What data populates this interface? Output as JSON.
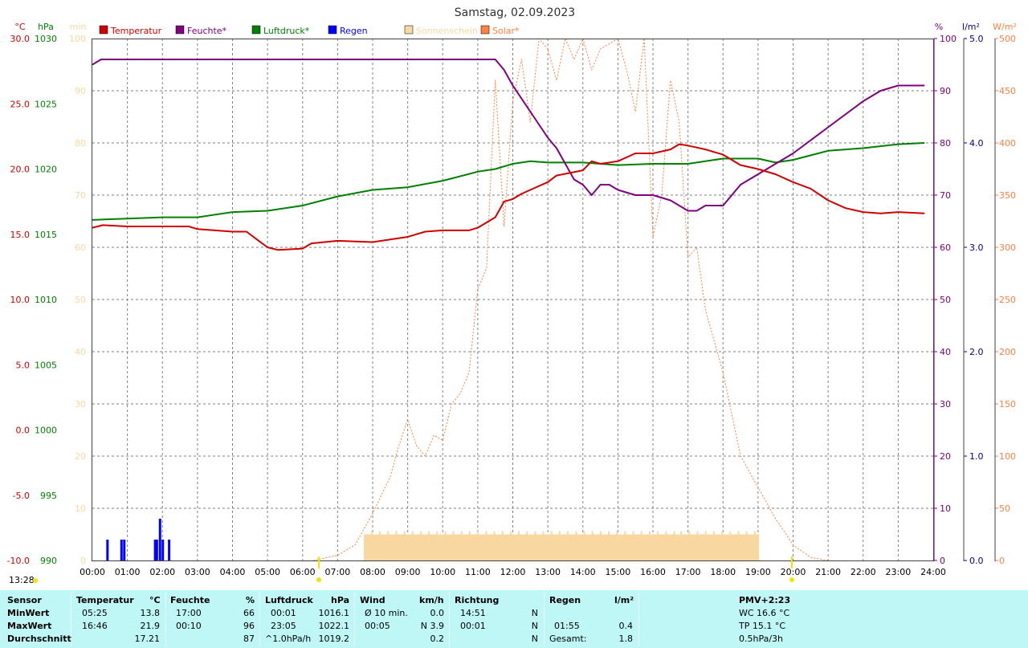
{
  "title": "Samstag, 02.09.2023",
  "current_time": "13:28",
  "colors": {
    "temperature": "#d00000",
    "humidity": "#800080",
    "pressure": "#008000",
    "rain": "#0000ff",
    "sunshine": "#f8d8a0",
    "solar": "#ff8040",
    "grid": "#808080",
    "table_bg": "#bff7f7"
  },
  "axes": {
    "temp_unit": "°C",
    "pressure_unit": "hPa",
    "sunshine_unit": "min",
    "humidity_unit": "%",
    "rain_unit": "l/m²",
    "solar_unit": "W/m²",
    "temp_ticks": [
      "30.0",
      "25.0",
      "20.0",
      "15.0",
      "10.0",
      "5.0",
      "0.0",
      "-5.0",
      "-10.0"
    ],
    "pressure_ticks": [
      "1030",
      "1025",
      "1020",
      "1015",
      "1010",
      "1005",
      "1000",
      "995",
      "990"
    ],
    "sunshine_ticks": [
      "100",
      "90",
      "80",
      "70",
      "60",
      "50",
      "40",
      "30",
      "20",
      "10",
      "0"
    ],
    "humidity_ticks": [
      "100",
      "90",
      "80",
      "70",
      "60",
      "50",
      "40",
      "30",
      "20",
      "10",
      "0"
    ],
    "rain_ticks": [
      "5.0",
      "4.0",
      "3.0",
      "2.0",
      "1.0",
      "0.0"
    ],
    "solar_ticks": [
      "500",
      "450",
      "400",
      "350",
      "300",
      "250",
      "200",
      "150",
      "100",
      "50",
      "0"
    ],
    "x_ticks": [
      "00:00",
      "01:00",
      "02:00",
      "03:00",
      "04:00",
      "05:00",
      "06:00",
      "07:00",
      "08:00",
      "09:00",
      "10:00",
      "11:00",
      "12:00",
      "13:00",
      "14:00",
      "15:00",
      "16:00",
      "17:00",
      "18:00",
      "19:00",
      "20:00",
      "21:00",
      "22:00",
      "23:00",
      "24:00"
    ]
  },
  "legend": [
    {
      "label": "Temperatur",
      "color": "#d00000"
    },
    {
      "label": "Feuchte*",
      "color": "#800080"
    },
    {
      "label": "Luftdruck*",
      "color": "#008000"
    },
    {
      "label": "Regen",
      "color": "#0000ff"
    },
    {
      "label": "Sonnenschein",
      "color": "#f8d8a0"
    },
    {
      "label": "Solar*",
      "color": "#ff8040"
    }
  ],
  "chart_data": {
    "type": "line",
    "title": "Samstag, 02.09.2023",
    "x_range_hours": [
      0,
      24
    ],
    "grid": true,
    "legend_placement": "top",
    "series": [
      {
        "name": "Temperatur",
        "axis": "left",
        "unit": "°C",
        "ylim": [
          -10,
          30
        ],
        "points": [
          [
            0,
            15.5
          ],
          [
            0.3,
            15.7
          ],
          [
            1,
            15.6
          ],
          [
            2,
            15.6
          ],
          [
            2.75,
            15.6
          ],
          [
            3,
            15.4
          ],
          [
            4,
            15.2
          ],
          [
            4.4,
            15.2
          ],
          [
            4.75,
            14.5
          ],
          [
            5,
            14.0
          ],
          [
            5.3,
            13.8
          ],
          [
            6,
            13.9
          ],
          [
            6.25,
            14.3
          ],
          [
            7,
            14.5
          ],
          [
            8,
            14.4
          ],
          [
            8.5,
            14.6
          ],
          [
            9,
            14.8
          ],
          [
            9.5,
            15.2
          ],
          [
            10,
            15.3
          ],
          [
            10.75,
            15.3
          ],
          [
            11,
            15.5
          ],
          [
            11.5,
            16.3
          ],
          [
            11.75,
            17.5
          ],
          [
            12,
            17.7
          ],
          [
            12.25,
            18.1
          ],
          [
            12.5,
            18.4
          ],
          [
            13,
            19.0
          ],
          [
            13.25,
            19.5
          ],
          [
            14,
            19.9
          ],
          [
            14.25,
            20.6
          ],
          [
            14.5,
            20.4
          ],
          [
            15,
            20.6
          ],
          [
            15.5,
            21.2
          ],
          [
            16,
            21.2
          ],
          [
            16.5,
            21.5
          ],
          [
            16.75,
            21.9
          ],
          [
            17,
            21.8
          ],
          [
            17.5,
            21.5
          ],
          [
            18,
            21.1
          ],
          [
            18.5,
            20.3
          ],
          [
            19,
            20.0
          ],
          [
            19.5,
            19.6
          ],
          [
            20,
            19.0
          ],
          [
            20.5,
            18.5
          ],
          [
            21,
            17.6
          ],
          [
            21.5,
            17.0
          ],
          [
            22,
            16.7
          ],
          [
            22.5,
            16.6
          ],
          [
            23,
            16.7
          ],
          [
            23.75,
            16.6
          ]
        ]
      },
      {
        "name": "Feuchte*",
        "axis": "right",
        "unit": "%",
        "ylim": [
          0,
          100
        ],
        "points": [
          [
            0,
            95
          ],
          [
            0.25,
            96
          ],
          [
            1,
            96
          ],
          [
            2,
            96
          ],
          [
            2.75,
            96
          ],
          [
            3,
            96
          ],
          [
            4,
            96
          ],
          [
            5,
            96
          ],
          [
            6,
            96
          ],
          [
            7,
            96
          ],
          [
            8,
            96
          ],
          [
            9,
            96
          ],
          [
            10,
            96
          ],
          [
            11,
            96
          ],
          [
            11.5,
            96
          ],
          [
            11.75,
            94
          ],
          [
            12,
            91
          ],
          [
            12.5,
            86
          ],
          [
            13,
            81
          ],
          [
            13.25,
            79
          ],
          [
            13.5,
            76
          ],
          [
            13.75,
            73
          ],
          [
            14,
            72
          ],
          [
            14.25,
            70
          ],
          [
            14.5,
            72
          ],
          [
            14.75,
            72
          ],
          [
            15,
            71
          ],
          [
            15.5,
            70
          ],
          [
            16,
            70
          ],
          [
            16.5,
            69
          ],
          [
            16.75,
            68
          ],
          [
            17,
            67
          ],
          [
            17.25,
            67
          ],
          [
            17.5,
            68
          ],
          [
            18,
            68
          ],
          [
            18.25,
            70
          ],
          [
            18.5,
            72
          ],
          [
            19,
            74
          ],
          [
            19.5,
            76
          ],
          [
            20,
            78
          ],
          [
            21,
            83
          ],
          [
            22,
            88
          ],
          [
            22.5,
            90
          ],
          [
            23,
            91
          ],
          [
            23.75,
            91
          ]
        ]
      },
      {
        "name": "Luftdruck*",
        "axis": "left",
        "unit": "hPa",
        "ylim": [
          990,
          1030
        ],
        "points": [
          [
            0,
            1016.1
          ],
          [
            1,
            1016.2
          ],
          [
            2,
            1016.3
          ],
          [
            3,
            1016.3
          ],
          [
            4,
            1016.7
          ],
          [
            5,
            1016.8
          ],
          [
            6,
            1017.2
          ],
          [
            7,
            1017.9
          ],
          [
            8,
            1018.4
          ],
          [
            9,
            1018.6
          ],
          [
            10,
            1019.1
          ],
          [
            11,
            1019.8
          ],
          [
            11.5,
            1020.0
          ],
          [
            12,
            1020.4
          ],
          [
            12.5,
            1020.6
          ],
          [
            13,
            1020.5
          ],
          [
            14,
            1020.5
          ],
          [
            15,
            1020.3
          ],
          [
            16,
            1020.4
          ],
          [
            17,
            1020.4
          ],
          [
            18,
            1020.8
          ],
          [
            19,
            1020.8
          ],
          [
            19.5,
            1020.5
          ],
          [
            20,
            1020.7
          ],
          [
            21,
            1021.4
          ],
          [
            22,
            1021.6
          ],
          [
            23,
            1021.9
          ],
          [
            23.75,
            1022.0
          ]
        ]
      },
      {
        "name": "Regen",
        "axis": "right",
        "unit": "l/m²",
        "type": "bar",
        "ylim": [
          0,
          5
        ],
        "points": [
          [
            0.42,
            0.2
          ],
          [
            0.82,
            0.2
          ],
          [
            0.9,
            0.2
          ],
          [
            1.78,
            0.2
          ],
          [
            1.83,
            0.2
          ],
          [
            1.92,
            0.4
          ],
          [
            2.0,
            0.2
          ],
          [
            2.18,
            0.2
          ]
        ]
      },
      {
        "name": "Sonnenschein",
        "axis": "left",
        "unit": "min",
        "type": "bar",
        "ylim": [
          0,
          100
        ],
        "range_hours": [
          7.75,
          19.0
        ],
        "typical_value": 5
      },
      {
        "name": "Solar*",
        "axis": "right",
        "unit": "W/m²",
        "type": "line",
        "ylim": [
          0,
          500
        ],
        "points": [
          [
            6.3,
            0
          ],
          [
            7,
            5
          ],
          [
            7.5,
            15
          ],
          [
            8,
            45
          ],
          [
            8.5,
            80
          ],
          [
            8.75,
            110
          ],
          [
            9,
            135
          ],
          [
            9.25,
            110
          ],
          [
            9.5,
            100
          ],
          [
            9.75,
            120
          ],
          [
            10,
            115
          ],
          [
            10.25,
            150
          ],
          [
            10.5,
            160
          ],
          [
            10.75,
            180
          ],
          [
            11,
            260
          ],
          [
            11.25,
            280
          ],
          [
            11.5,
            460
          ],
          [
            11.75,
            320
          ],
          [
            12,
            440
          ],
          [
            12.25,
            480
          ],
          [
            12.5,
            420
          ],
          [
            12.75,
            500
          ],
          [
            13,
            490
          ],
          [
            13.25,
            460
          ],
          [
            13.5,
            500
          ],
          [
            13.75,
            480
          ],
          [
            14,
            500
          ],
          [
            14.25,
            470
          ],
          [
            14.5,
            490
          ],
          [
            15,
            500
          ],
          [
            15.25,
            470
          ],
          [
            15.5,
            430
          ],
          [
            15.75,
            500
          ],
          [
            16,
            310
          ],
          [
            16.25,
            350
          ],
          [
            16.5,
            460
          ],
          [
            16.75,
            420
          ],
          [
            17,
            290
          ],
          [
            17.25,
            300
          ],
          [
            17.5,
            240
          ],
          [
            18,
            180
          ],
          [
            18.5,
            100
          ],
          [
            19,
            70
          ],
          [
            19.5,
            40
          ],
          [
            20,
            15
          ],
          [
            20.5,
            3
          ],
          [
            21,
            0
          ]
        ]
      }
    ]
  },
  "footer": {
    "headers": {
      "sensor": "Sensor",
      "temp": "Temperatur",
      "temp_unit": "°C",
      "hum": "Feuchte",
      "hum_unit": "%",
      "press": "Luftdruck",
      "press_unit": "hPa",
      "wind": "Wind",
      "wind_unit": "km/h",
      "dir": "Richtung",
      "rain": "Regen",
      "rain_unit": "l/m²",
      "pmv": "PMV+2:23"
    },
    "rows": [
      {
        "label": "MinWert",
        "temp_time": "05:25",
        "temp_val": "13.8",
        "hum_time": "17:00",
        "hum_val": "66",
        "press_time": "00:01",
        "press_val": "1016.1",
        "wind_time": "Ø 10 min.",
        "wind_val": "0.0",
        "dir_time": "14:51",
        "dir_val": "N",
        "rain_time": "",
        "rain_val": "",
        "extra": "WC 16.6 °C"
      },
      {
        "label": "MaxWert",
        "temp_time": "16:46",
        "temp_val": "21.9",
        "hum_time": "00:10",
        "hum_val": "96",
        "press_time": "23:05",
        "press_val": "1022.1",
        "wind_time": "00:05",
        "wind_val": "N 3.9",
        "dir_time": "00:01",
        "dir_val": "N",
        "rain_time": "01:55",
        "rain_val": "0.4",
        "extra": "TP 15.1 °C"
      },
      {
        "label": "Durchschnitt",
        "temp_time": "",
        "temp_val": "17.21",
        "hum_time": "",
        "hum_val": "87",
        "press_time": "^1.0hPa/h",
        "press_val": "1019.2",
        "wind_time": "",
        "wind_val": "0.2",
        "dir_time": "",
        "dir_val": "N",
        "rain_time": "Gesamt:",
        "rain_val": "1.8",
        "extra": "0.5hPa/3h"
      }
    ]
  }
}
